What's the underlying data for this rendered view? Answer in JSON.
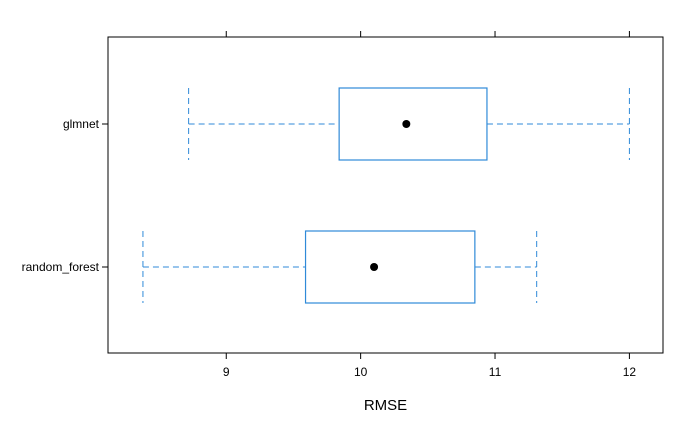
{
  "chart_data": {
    "type": "box",
    "orientation": "horizontal",
    "title": "",
    "xlabel": "RMSE",
    "ylabel": "",
    "xlim": [
      8.12,
      12.25
    ],
    "xticks": [
      9,
      10,
      11,
      12
    ],
    "xtick_labels": [
      "9",
      "10",
      "11",
      "12"
    ],
    "grid": false,
    "legend": "none",
    "categories": [
      "glmnet",
      "random_forest"
    ],
    "boxes": [
      {
        "name": "glmnet",
        "whisker_low": 8.72,
        "q1": 9.84,
        "median": 10.34,
        "q3": 10.94,
        "whisker_high": 12.0
      },
      {
        "name": "random_forest",
        "whisker_low": 8.38,
        "q1": 9.59,
        "median": 10.1,
        "q3": 10.85,
        "whisker_high": 11.31
      }
    ],
    "colors": {
      "box": "#2f8ad8",
      "median_dot": "#000000",
      "frame": "#000000"
    }
  }
}
